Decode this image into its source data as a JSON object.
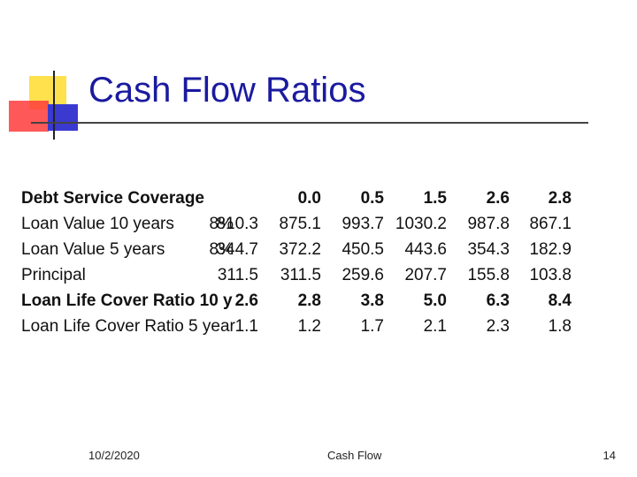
{
  "slide": {
    "title": "Cash Flow Ratios",
    "footer": {
      "date": "10/2/2020",
      "center": "Cash Flow",
      "page": "14"
    }
  },
  "table": {
    "rows": [
      {
        "label": "Debt Service Coverage",
        "rate": "",
        "values": [
          "",
          "0.0",
          "0.5",
          "1.5",
          "2.6",
          "2.8"
        ],
        "bold": true
      },
      {
        "label": "Loan Value 10 years",
        "rate": "8%",
        "values": [
          "810.3",
          "875.1",
          "993.7",
          "1030.2",
          "987.8",
          "867.1"
        ],
        "bold": false
      },
      {
        "label": "Loan Value 5 years",
        "rate": "8%",
        "values": [
          "344.7",
          "372.2",
          "450.5",
          "443.6",
          "354.3",
          "182.9"
        ],
        "bold": false
      },
      {
        "label": "Principal",
        "rate": "",
        "values": [
          "311.5",
          "311.5",
          "259.6",
          "207.7",
          "155.8",
          "103.8"
        ],
        "bold": false
      },
      {
        "label": "Loan Life Cover Ratio 10 y",
        "rate": "",
        "values": [
          "2.6",
          "2.8",
          "3.8",
          "5.0",
          "6.3",
          "8.4"
        ],
        "bold": true
      },
      {
        "label": "Loan Life Cover Ratio 5 year",
        "rate": "",
        "values": [
          "1.1",
          "1.2",
          "1.7",
          "2.1",
          "2.3",
          "1.8"
        ],
        "bold": false
      }
    ]
  }
}
